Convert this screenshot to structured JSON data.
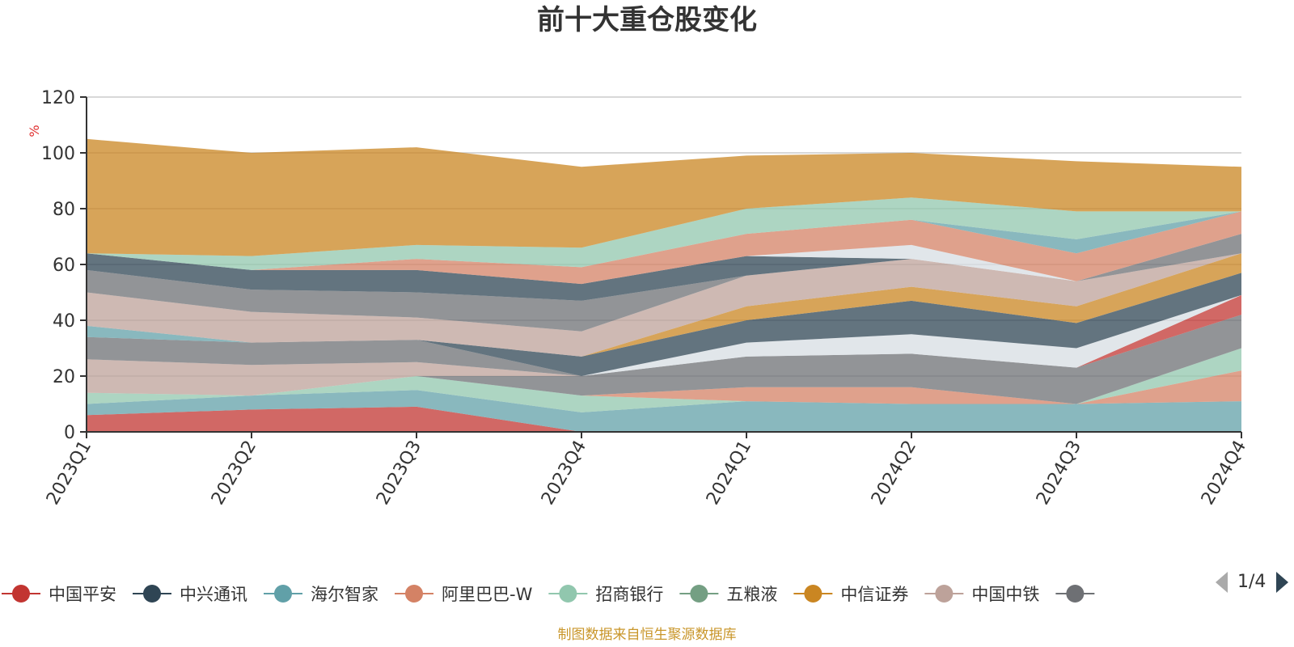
{
  "chart_data": {
    "type": "area",
    "title": "前十大重仓股变化",
    "ylabel": "%",
    "ylim": [
      0,
      120
    ],
    "yticks": [
      0,
      20,
      40,
      60,
      80,
      100,
      120
    ],
    "grid": true,
    "stacked": true,
    "categories": [
      "2023Q1",
      "2023Q2",
      "2023Q3",
      "2023Q4",
      "2024Q1",
      "2024Q2",
      "2024Q3",
      "2024Q4"
    ],
    "series": [
      {
        "name": "中国平安",
        "color": "#c23531",
        "values": [
          6,
          8,
          9,
          0,
          0,
          0,
          0,
          0
        ]
      },
      {
        "name": "",
        "color": "#61a0a8",
        "values": [
          4,
          5,
          6,
          7,
          11,
          10,
          10,
          11
        ]
      },
      {
        "name": "",
        "color": "#91c7ae",
        "values": [
          4,
          0,
          5,
          6,
          0,
          0,
          0,
          0
        ]
      },
      {
        "name": "",
        "color": "#d48265",
        "values": [
          0,
          0,
          0,
          0,
          5,
          6,
          0,
          11
        ]
      },
      {
        "name": "",
        "color": "#91c7ae",
        "values": [
          0,
          0,
          0,
          0,
          0,
          0,
          0,
          8
        ]
      },
      {
        "name": "",
        "color": "#6e7074",
        "values": [
          0,
          0,
          0,
          7,
          11,
          12,
          13,
          12
        ]
      },
      {
        "name": "",
        "color": "#bda29a",
        "values": [
          12,
          11,
          5,
          0,
          0,
          0,
          0,
          0
        ]
      },
      {
        "name": "",
        "color": "#6e7074",
        "values": [
          8,
          8,
          8,
          0,
          0,
          0,
          0,
          0
        ]
      },
      {
        "name": "",
        "color": "#ca8622",
        "values": [
          0,
          0,
          0,
          0,
          0,
          0,
          0,
          0
        ]
      },
      {
        "name": "",
        "color": "#c23531",
        "values": [
          0,
          0,
          0,
          0,
          0,
          0,
          0,
          7
        ]
      },
      {
        "name": "",
        "color": "#d7dde3",
        "values": [
          0,
          0,
          0,
          0,
          5,
          7,
          7,
          0
        ]
      },
      {
        "name": "",
        "color": "#2f4554",
        "values": [
          0,
          0,
          0,
          7,
          8,
          12,
          9,
          8
        ]
      },
      {
        "name": "",
        "color": "#61a0a8",
        "values": [
          4,
          0,
          0,
          0,
          0,
          0,
          0,
          0
        ]
      },
      {
        "name": "",
        "color": "#ca8622",
        "values": [
          0,
          0,
          0,
          0,
          5,
          5,
          6,
          7
        ]
      },
      {
        "name": "",
        "color": "#bda29a",
        "values": [
          12,
          11,
          8,
          9,
          11,
          10,
          9,
          0
        ]
      },
      {
        "name": "",
        "color": "#6e7074",
        "values": [
          8,
          8,
          9,
          11,
          0,
          0,
          0,
          7
        ]
      },
      {
        "name": "",
        "color": "#2f4554",
        "values": [
          6,
          7,
          8,
          6,
          7,
          0,
          0,
          0
        ]
      },
      {
        "name": "",
        "color": "#d7dde3",
        "values": [
          0,
          0,
          0,
          0,
          0,
          5,
          0,
          0
        ]
      },
      {
        "name": "",
        "color": "#d48265",
        "values": [
          0,
          0,
          4,
          6,
          8,
          9,
          10,
          8
        ]
      },
      {
        "name": "",
        "color": "#61a0a8",
        "values": [
          0,
          0,
          0,
          0,
          0,
          0,
          5,
          0
        ]
      },
      {
        "name": "",
        "color": "#91c7ae",
        "values": [
          0,
          5,
          5,
          7,
          9,
          8,
          10,
          0
        ]
      },
      {
        "name": "",
        "color": "#ca8622",
        "values": [
          41,
          37,
          35,
          29,
          19,
          16,
          18,
          16
        ]
      }
    ]
  },
  "legend": {
    "items": [
      {
        "label": "中国平安",
        "color": "#c23531"
      },
      {
        "label": "中兴通讯",
        "color": "#2f4554"
      },
      {
        "label": "海尔智家",
        "color": "#61a0a8"
      },
      {
        "label": "阿里巴巴-W",
        "color": "#d48265"
      },
      {
        "label": "招商银行",
        "color": "#91c7ae"
      },
      {
        "label": "五粮液",
        "color": "#749f83"
      },
      {
        "label": "中信证券",
        "color": "#ca8622"
      },
      {
        "label": "中国中铁",
        "color": "#bda29a"
      },
      {
        "label": "",
        "color": "#6e7074"
      }
    ],
    "page": "1/4"
  },
  "footer": {
    "source_text": "制图数据来自恒生聚源数据库",
    "color": "#c9962a"
  },
  "colors": {
    "title": "#333333",
    "unit": "#e03030",
    "axis": "#333333",
    "grid": "#cccccc",
    "pager_active": "#2f4554",
    "pager_inactive": "#aaaaaa"
  }
}
